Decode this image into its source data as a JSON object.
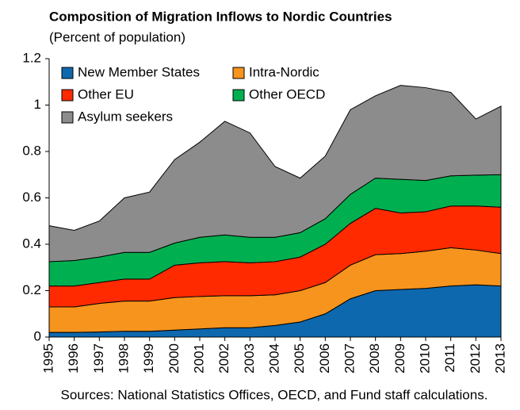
{
  "chart_data": {
    "type": "stacked_area",
    "title": "Composition of Migration Inflows to Nordic Countries",
    "subtitle": "(Percent of population)",
    "note": "Sources: National Statistics Offices, OECD, and Fund staff calculations.",
    "categories": [
      "1995",
      "1996",
      "1997",
      "1998",
      "1999",
      "2000",
      "2001",
      "2002",
      "2003",
      "2004",
      "2005",
      "2006",
      "2007",
      "2008",
      "2009",
      "2010",
      "2011",
      "2012",
      "2013"
    ],
    "series": [
      {
        "name": "New Member States",
        "color": "#0e68ae",
        "values": [
          0.02,
          0.02,
          0.022,
          0.025,
          0.025,
          0.03,
          0.035,
          0.04,
          0.04,
          0.05,
          0.065,
          0.1,
          0.165,
          0.2,
          0.205,
          0.21,
          0.22,
          0.225,
          0.22
        ]
      },
      {
        "name": "Intra-Nordic",
        "color": "#f7941d",
        "values": [
          0.11,
          0.11,
          0.123,
          0.13,
          0.13,
          0.14,
          0.14,
          0.138,
          0.138,
          0.132,
          0.135,
          0.135,
          0.145,
          0.155,
          0.155,
          0.16,
          0.165,
          0.15,
          0.14
        ]
      },
      {
        "name": "Other EU",
        "color": "#ff2a00",
        "values": [
          0.09,
          0.09,
          0.09,
          0.095,
          0.095,
          0.14,
          0.145,
          0.147,
          0.142,
          0.143,
          0.145,
          0.165,
          0.18,
          0.2,
          0.175,
          0.17,
          0.18,
          0.19,
          0.2
        ]
      },
      {
        "name": "Other OECD",
        "color": "#00b050",
        "values": [
          0.105,
          0.11,
          0.11,
          0.115,
          0.115,
          0.095,
          0.11,
          0.115,
          0.11,
          0.105,
          0.105,
          0.11,
          0.125,
          0.13,
          0.145,
          0.135,
          0.13,
          0.133,
          0.14
        ]
      },
      {
        "name": "Asylum seekers",
        "color": "#8c8c8c",
        "values": [
          0.155,
          0.13,
          0.155,
          0.235,
          0.26,
          0.36,
          0.41,
          0.49,
          0.45,
          0.305,
          0.235,
          0.27,
          0.365,
          0.355,
          0.405,
          0.4,
          0.36,
          0.242,
          0.295
        ]
      }
    ],
    "ylim": [
      0,
      1.2
    ],
    "yticks": [
      0,
      0.2,
      0.4,
      0.6,
      0.8,
      1,
      1.2
    ],
    "legend": "top-left"
  }
}
